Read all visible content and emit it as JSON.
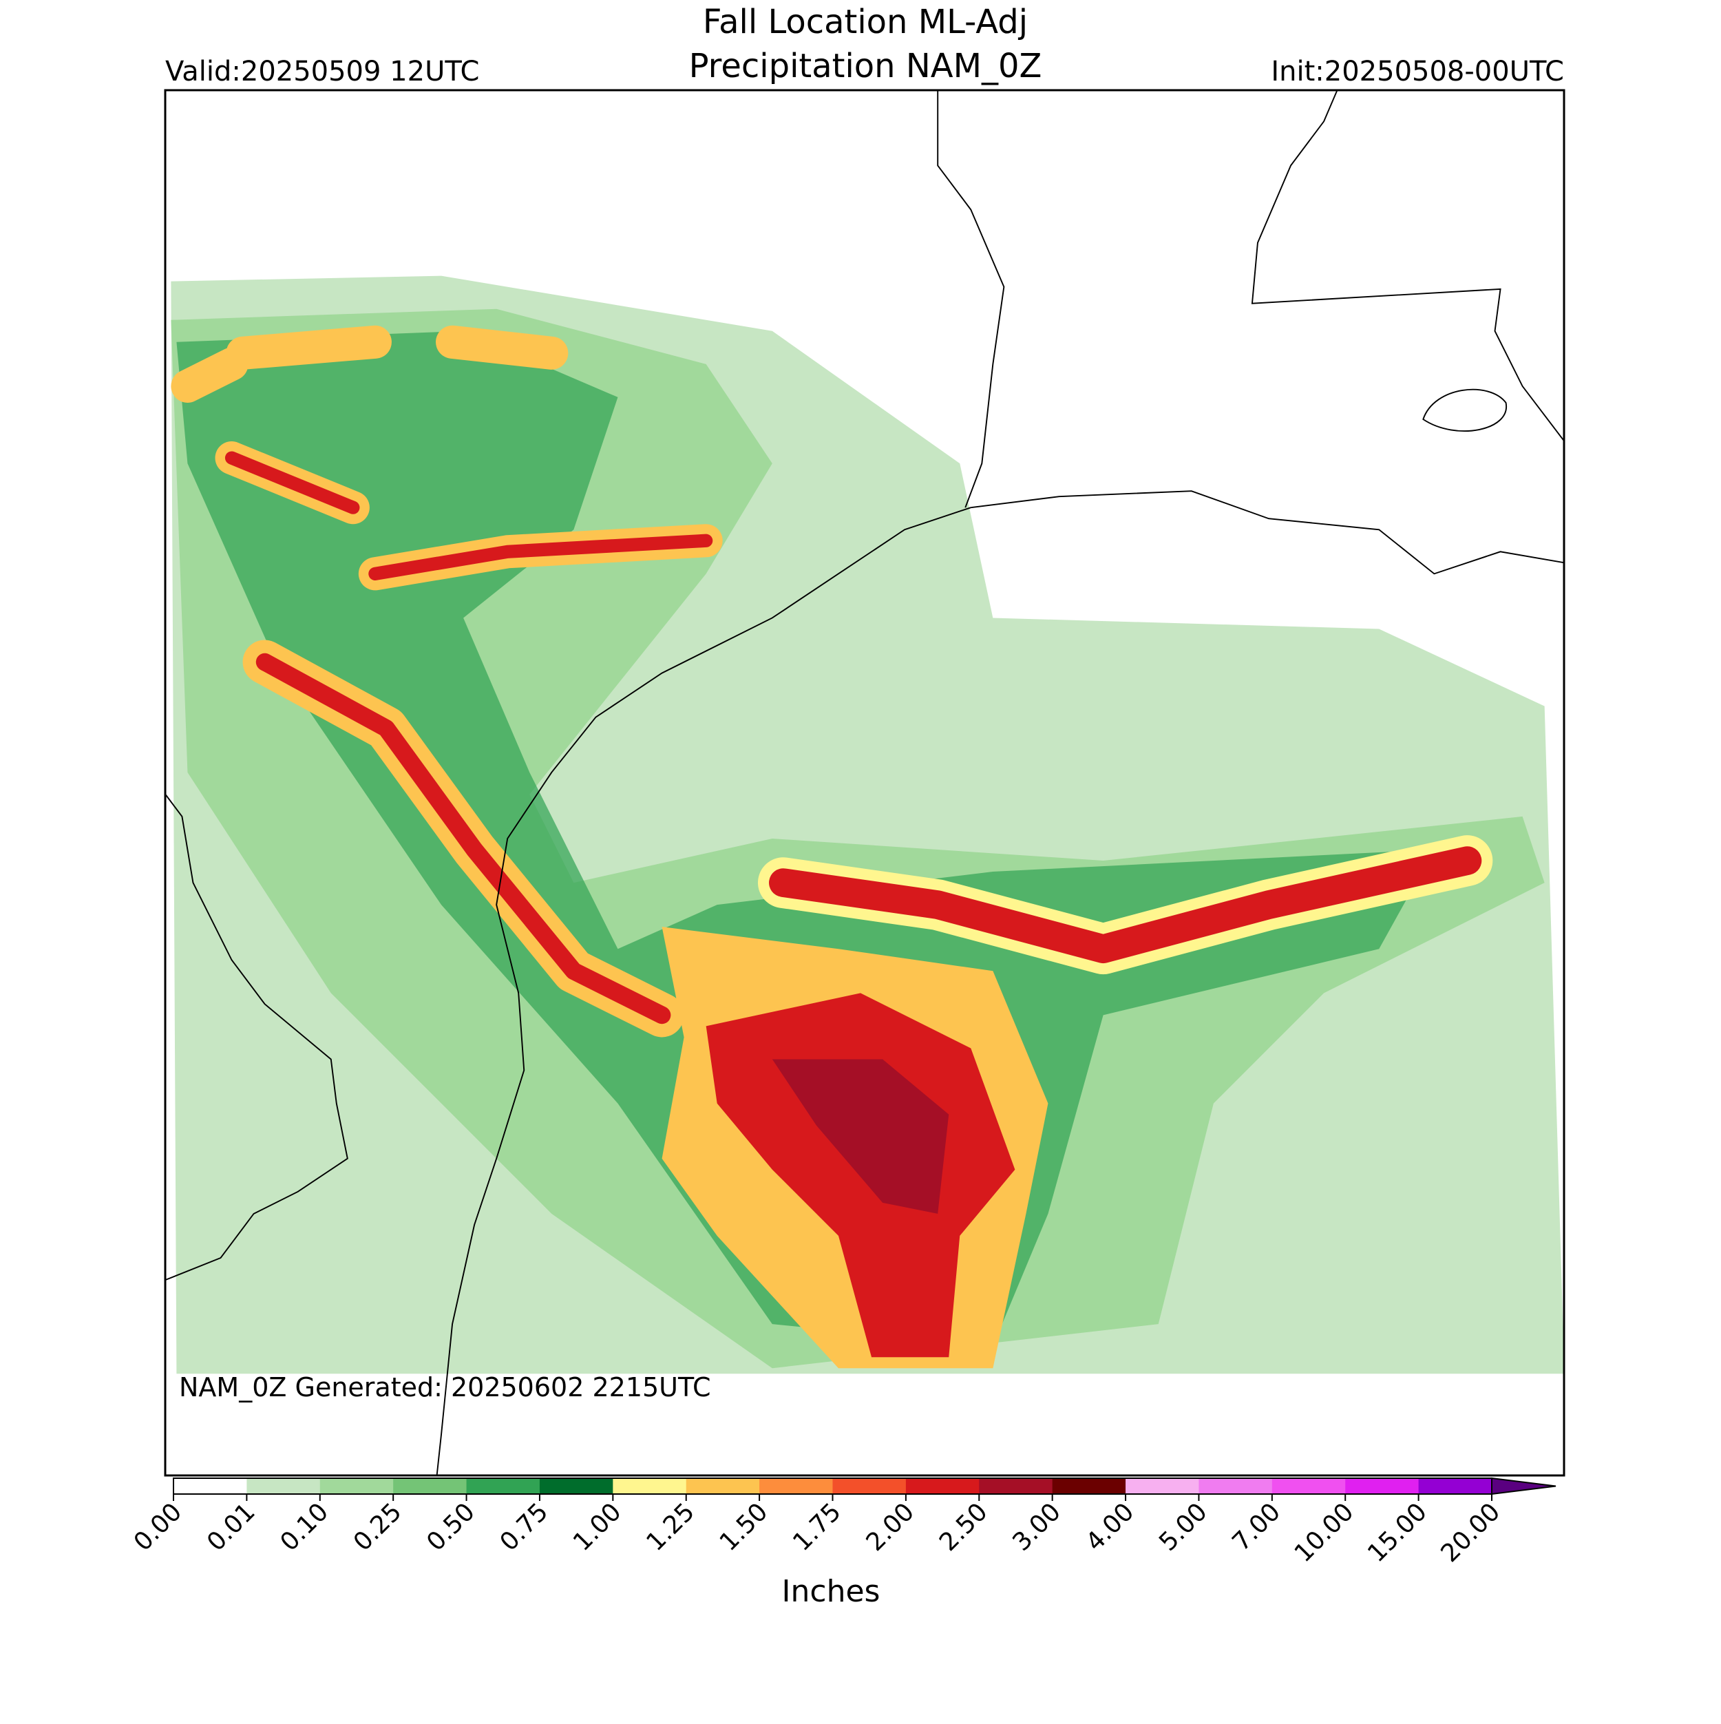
{
  "header": {
    "title": "Fall Location ML-Adj",
    "subtitle": "Precipitation NAM_0Z",
    "valid": "Valid:20250509 12UTC",
    "init": "Init:20250508-00UTC"
  },
  "map": {
    "note": "NAM_0Z Generated: 20250602 2215UTC"
  },
  "colorbar": {
    "label": "Inches",
    "extend": "max",
    "ticks": [
      {
        "value": 0,
        "label": "0.00"
      },
      {
        "value": 0.01,
        "label": "0.01"
      },
      {
        "value": 0.1,
        "label": "0.10"
      },
      {
        "value": 0.25,
        "label": "0.25"
      },
      {
        "value": 0.5,
        "label": "0.50"
      },
      {
        "value": 0.75,
        "label": "0.75"
      },
      {
        "value": 1,
        "label": "1.00"
      },
      {
        "value": 1.25,
        "label": "1.25"
      },
      {
        "value": 1.5,
        "label": "1.50"
      },
      {
        "value": 1.75,
        "label": "1.75"
      },
      {
        "value": 2,
        "label": "2.00"
      },
      {
        "value": 2.5,
        "label": "2.50"
      },
      {
        "value": 3,
        "label": "3.00"
      },
      {
        "value": 4,
        "label": "4.00"
      },
      {
        "value": 5,
        "label": "5.00"
      },
      {
        "value": 7,
        "label": "7.00"
      },
      {
        "value": 10,
        "label": "10.00"
      },
      {
        "value": 15,
        "label": "15.00"
      },
      {
        "value": 20,
        "label": "20.00"
      }
    ],
    "colors": [
      "#ffffff",
      "#c7e6c3",
      "#a1d99b",
      "#74c476",
      "#31a354",
      "#006d2c",
      "#fff68f",
      "#fdc450",
      "#fd8d3c",
      "#f3502a",
      "#d7191c",
      "#a50f26",
      "#6b0000",
      "#f7b0f0",
      "#f07cf0",
      "#f050f0",
      "#e020f0",
      "#9400d3"
    ],
    "extend_color": "#5a0080"
  }
}
